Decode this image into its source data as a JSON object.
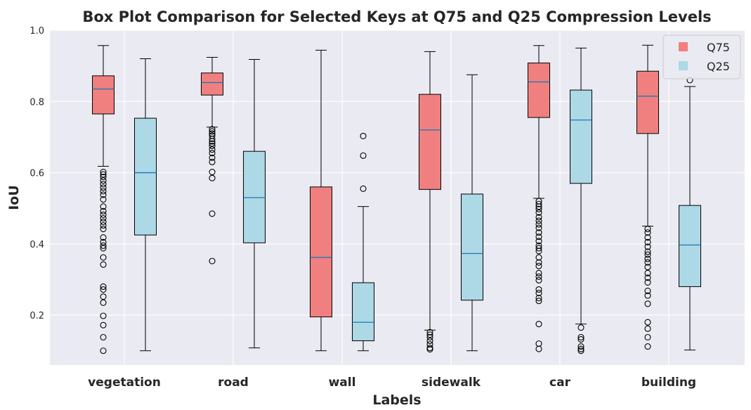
{
  "chart_data": {
    "type": "box",
    "title": "Box Plot Comparison for Selected Keys at Q75 and Q25 Compression Levels",
    "xlabel": "Labels",
    "ylabel": "IoU",
    "ylim": [
      0.06,
      1.0
    ],
    "yticks": [
      "0.2",
      "0.4",
      "0.6",
      "0.8",
      "1.0"
    ],
    "grid": true,
    "legend_position": "top-right",
    "categories": [
      "vegetation",
      "road",
      "wall",
      "sidewalk",
      "car",
      "building"
    ],
    "series": [
      {
        "name": "Q75",
        "color": "#f08080",
        "boxes": [
          {
            "whislo": 0.618,
            "q1": 0.765,
            "median": 0.835,
            "q3": 0.872,
            "whishi": 0.957,
            "fliers": [
              0.602,
              0.595,
              0.588,
              0.578,
              0.568,
              0.558,
              0.548,
              0.538,
              0.525,
              0.505,
              0.492,
              0.482,
              0.472,
              0.462,
              0.452,
              0.442,
              0.418,
              0.405,
              0.395,
              0.388,
              0.362,
              0.342,
              0.28,
              0.272,
              0.252,
              0.235,
              0.198,
              0.172,
              0.138,
              0.1
            ]
          },
          {
            "whislo": 0.728,
            "q1": 0.818,
            "median": 0.853,
            "q3": 0.88,
            "whishi": 0.924,
            "fliers": [
              0.722,
              0.716,
              0.71,
              0.704,
              0.695,
              0.688,
              0.682,
              0.675,
              0.665,
              0.655,
              0.642,
              0.63,
              0.602,
              0.585,
              0.485,
              0.352
            ]
          },
          {
            "whislo": 0.1,
            "q1": 0.195,
            "median": 0.362,
            "q3": 0.56,
            "whishi": 0.944,
            "fliers": []
          },
          {
            "whislo": 0.158,
            "q1": 0.553,
            "median": 0.72,
            "q3": 0.82,
            "whishi": 0.94,
            "fliers": [
              0.152,
              0.145,
              0.138,
              0.128,
              0.118,
              0.108,
              0.104
            ]
          },
          {
            "whislo": 0.528,
            "q1": 0.755,
            "median": 0.855,
            "q3": 0.908,
            "whishi": 0.957,
            "fliers": [
              0.52,
              0.512,
              0.505,
              0.498,
              0.488,
              0.475,
              0.465,
              0.455,
              0.445,
              0.432,
              0.42,
              0.408,
              0.395,
              0.388,
              0.38,
              0.362,
              0.348,
              0.338,
              0.318,
              0.308,
              0.298,
              0.272,
              0.262,
              0.248,
              0.24,
              0.175,
              0.12,
              0.105
            ]
          },
          {
            "whislo": 0.45,
            "q1": 0.71,
            "median": 0.815,
            "q3": 0.885,
            "whishi": 0.958,
            "fliers": [
              0.442,
              0.432,
              0.418,
              0.405,
              0.392,
              0.378,
              0.37,
              0.358,
              0.348,
              0.335,
              0.318,
              0.305,
              0.292,
              0.268,
              0.255,
              0.232,
              0.18,
              0.162,
              0.138,
              0.112
            ]
          }
        ]
      },
      {
        "name": "Q25",
        "color": "#add8e6",
        "boxes": [
          {
            "whislo": 0.1,
            "q1": 0.425,
            "median": 0.6,
            "q3": 0.753,
            "whishi": 0.92,
            "fliers": []
          },
          {
            "whislo": 0.108,
            "q1": 0.403,
            "median": 0.53,
            "q3": 0.66,
            "whishi": 0.918,
            "fliers": []
          },
          {
            "whislo": 0.1,
            "q1": 0.128,
            "median": 0.18,
            "q3": 0.291,
            "whishi": 0.505,
            "fliers": [
              0.555,
              0.648,
              0.703
            ]
          },
          {
            "whislo": 0.1,
            "q1": 0.242,
            "median": 0.373,
            "q3": 0.54,
            "whishi": 0.875,
            "fliers": []
          },
          {
            "whislo": 0.175,
            "q1": 0.57,
            "median": 0.748,
            "q3": 0.832,
            "whishi": 0.95,
            "fliers": [
              0.165,
              0.138,
              0.132,
              0.112,
              0.105,
              0.1
            ]
          },
          {
            "whislo": 0.102,
            "q1": 0.28,
            "median": 0.397,
            "q3": 0.508,
            "whishi": 0.842,
            "fliers": [
              0.86
            ]
          }
        ]
      }
    ]
  }
}
